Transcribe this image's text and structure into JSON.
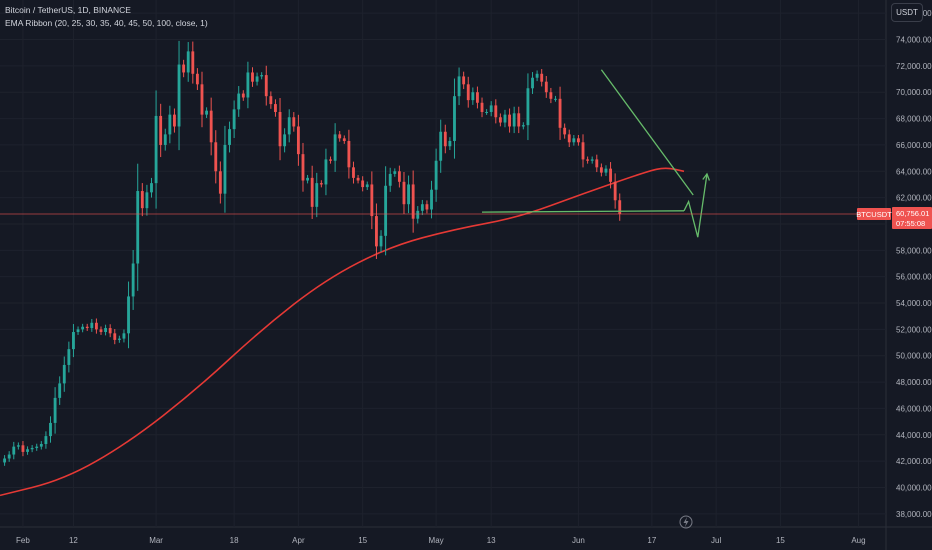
{
  "legend": {
    "symbol_line": "Bitcoin / TetherUS, 1D, BINANCE",
    "indicator_line": "EMA Ribbon (20, 25, 30, 35, 40, 45, 50, 100, close, 1)"
  },
  "toolbar": {
    "currency": "USDT"
  },
  "price_label": {
    "ticker": "BTCUSDT",
    "price": "60,756.01",
    "countdown": "07:55:08"
  },
  "colors": {
    "up": "#26a69a",
    "down": "#ef5350",
    "ema": "#e53935",
    "trendline": "#66bb6a",
    "price_line": "#ef5350",
    "grid": "#1e222d",
    "background": "#151924"
  },
  "chart_data": {
    "type": "candlestick",
    "symbol": "BTCUSDT",
    "interval": "1D",
    "exchange": "BINANCE",
    "ylim": [
      37000,
      77000
    ],
    "y_ticks": [
      "38,000.00",
      "40,000.00",
      "42,000.00",
      "44,000.00",
      "46,000.00",
      "48,000.00",
      "50,000.00",
      "52,000.00",
      "54,000.00",
      "56,000.00",
      "58,000.00",
      "60,000.00",
      "62,000.00",
      "64,000.00",
      "66,000.00",
      "68,000.00",
      "70,000.00",
      "72,000.00",
      "74,000.00",
      "76,000.00"
    ],
    "x_ticks": [
      {
        "date": "2024-02-01",
        "label": "Feb"
      },
      {
        "date": "2024-02-12",
        "label": "12"
      },
      {
        "date": "2024-03-01",
        "label": "Mar"
      },
      {
        "date": "2024-03-18",
        "label": "18"
      },
      {
        "date": "2024-04-01",
        "label": "Apr"
      },
      {
        "date": "2024-04-15",
        "label": "15"
      },
      {
        "date": "2024-05-01",
        "label": "May"
      },
      {
        "date": "2024-05-13",
        "label": "13"
      },
      {
        "date": "2024-06-01",
        "label": "Jun"
      },
      {
        "date": "2024-06-17",
        "label": "17"
      },
      {
        "date": "2024-07-01",
        "label": "Jul"
      },
      {
        "date": "2024-07-15",
        "label": "15"
      },
      {
        "date": "2024-08-01",
        "label": "Aug"
      }
    ],
    "x_range": [
      "2024-01-27",
      "2024-08-07"
    ],
    "last_price": 60756.01,
    "closes": [
      42200,
      42500,
      43100,
      43200,
      42700,
      42900,
      43000,
      43100,
      43300,
      43900,
      44900,
      46800,
      47900,
      49300,
      50500,
      51800,
      52000,
      52200,
      52100,
      52500,
      52000,
      51800,
      52100,
      51700,
      51200,
      51300,
      51700,
      54500,
      57000,
      62500,
      61200,
      62400,
      63100,
      68200,
      66000,
      66800,
      68300,
      67400,
      72100,
      71500,
      73100,
      71400,
      70600,
      68300,
      68600,
      66200,
      64000,
      62300,
      66000,
      67200,
      68700,
      69900,
      69600,
      71500,
      70800,
      71200,
      71300,
      69700,
      69100,
      68500,
      65900,
      66800,
      68100,
      67400,
      65300,
      63300,
      63500,
      61300,
      63100,
      63000,
      64900,
      64800,
      66800,
      66500,
      66300,
      64300,
      63500,
      63300,
      62800,
      63000,
      60600,
      58300,
      59100,
      62900,
      63800,
      64000,
      63200,
      61500,
      63000,
      60400,
      61000,
      61500,
      61100,
      62600,
      64800,
      67000,
      65900,
      66300,
      69700,
      71200,
      70600,
      69400,
      70000,
      69200,
      68500,
      68500,
      69000,
      68100,
      67700,
      68300,
      67400,
      68400,
      67400,
      67500,
      70300,
      71100,
      71400,
      70800,
      70000,
      69500,
      69500,
      67300,
      66800,
      66200,
      66500,
      66200,
      64900,
      64800,
      64900,
      64300,
      63900,
      64200,
      63200,
      61800,
      60756.01
    ],
    "ema": [
      {
        "date": "2024-01-27",
        "value": 39400
      },
      {
        "date": "2024-02-10",
        "value": 40600
      },
      {
        "date": "2024-02-24",
        "value": 43400
      },
      {
        "date": "2024-03-10",
        "value": 47500
      },
      {
        "date": "2024-03-24",
        "value": 52000
      },
      {
        "date": "2024-04-07",
        "value": 55800
      },
      {
        "date": "2024-04-21",
        "value": 58300
      },
      {
        "date": "2024-05-05",
        "value": 59600
      },
      {
        "date": "2024-05-19",
        "value": 60500
      },
      {
        "date": "2024-06-02",
        "value": 62300
      },
      {
        "date": "2024-06-16",
        "value": 64000
      },
      {
        "date": "2024-06-20",
        "value": 64300
      },
      {
        "date": "2024-06-24",
        "value": 64000
      }
    ],
    "drawings": [
      {
        "name": "resistance-trendline",
        "points": [
          {
            "date": "2024-06-06",
            "value": 71700
          },
          {
            "date": "2024-06-26",
            "value": 62200
          }
        ]
      },
      {
        "name": "support-line",
        "points": [
          {
            "date": "2024-05-11",
            "value": 60900
          },
          {
            "date": "2024-06-24",
            "value": 61000
          }
        ]
      },
      {
        "name": "projection-path",
        "points": [
          {
            "date": "2024-06-24",
            "value": 61000
          },
          {
            "date": "2024-06-25",
            "value": 61700
          },
          {
            "date": "2024-06-27",
            "value": 59000
          },
          {
            "date": "2024-06-29",
            "value": 63800
          }
        ]
      }
    ]
  }
}
